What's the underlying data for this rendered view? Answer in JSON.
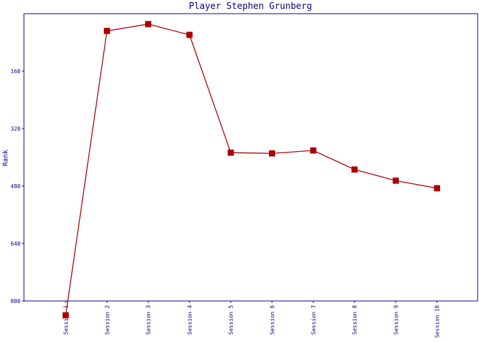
{
  "chart_data": {
    "type": "line",
    "title": "Player Stephen Grunberg",
    "y_label": "Rank",
    "categories": [
      "Session 1",
      "Session 2",
      "Session 3",
      "Session 4",
      "Session 5",
      "Session 6",
      "Session 7",
      "Session 8",
      "Session 9",
      "Session 10"
    ],
    "series": [
      {
        "name": "Rank",
        "color": "#aa0000",
        "values": [
          840,
          48,
          29,
          59,
          387,
          389,
          381,
          434,
          465,
          486
        ]
      }
    ],
    "ylim": [
      0,
      800
    ],
    "yticks": [
      160,
      320,
      480,
      640,
      800
    ],
    "y_inverted": true,
    "grid": false
  }
}
